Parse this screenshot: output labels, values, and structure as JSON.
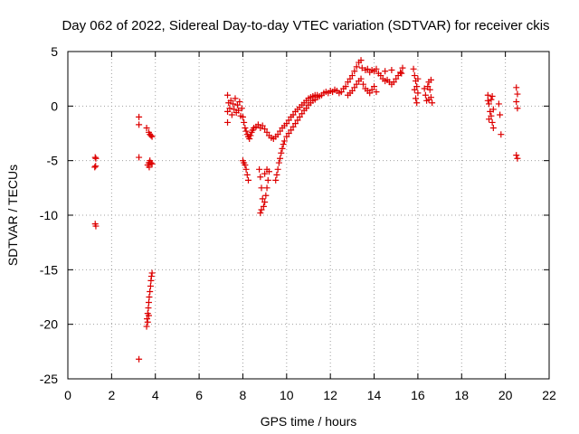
{
  "chart_data": {
    "type": "scatter",
    "title": "Day 062 of 2022, Sidereal Day-to-day VTEC variation (SDTVAR) for receiver ckis",
    "xlabel": "GPS time / hours",
    "ylabel": "SDTVAR / TECUs",
    "xlim": [
      0,
      22
    ],
    "ylim": [
      -25,
      5
    ],
    "xticks": [
      "0",
      "2",
      "4",
      "6",
      "8",
      "10",
      "12",
      "14",
      "16",
      "18",
      "20",
      "22"
    ],
    "yticks": [
      "5",
      "0",
      "-5",
      "-10",
      "-15",
      "-20",
      "-25"
    ],
    "grid": true,
    "marker": "+",
    "color": "#dd0000",
    "series": [
      {
        "name": "SDTVAR",
        "points": [
          [
            1.25,
            -4.7
          ],
          [
            1.28,
            -4.8
          ],
          [
            1.23,
            -5.6
          ],
          [
            1.27,
            -5.5
          ],
          [
            1.25,
            -10.8
          ],
          [
            1.28,
            -11.0
          ],
          [
            3.25,
            -1.0
          ],
          [
            3.25,
            -1.7
          ],
          [
            3.25,
            -4.7
          ],
          [
            3.25,
            -23.2
          ],
          [
            3.6,
            -2.0
          ],
          [
            3.7,
            -2.4
          ],
          [
            3.75,
            -2.6
          ],
          [
            3.8,
            -2.7
          ],
          [
            3.85,
            -2.8
          ],
          [
            3.65,
            -5.4
          ],
          [
            3.7,
            -5.2
          ],
          [
            3.75,
            -5.0
          ],
          [
            3.8,
            -5.2
          ],
          [
            3.85,
            -5.3
          ],
          [
            3.72,
            -5.6
          ],
          [
            3.6,
            -20.2
          ],
          [
            3.62,
            -19.5
          ],
          [
            3.65,
            -19.0
          ],
          [
            3.68,
            -18.5
          ],
          [
            3.7,
            -18.0
          ],
          [
            3.72,
            -17.5
          ],
          [
            3.75,
            -17.0
          ],
          [
            3.78,
            -16.5
          ],
          [
            3.8,
            -16.0
          ],
          [
            3.82,
            -15.6
          ],
          [
            3.85,
            -15.3
          ],
          [
            3.65,
            -19.8
          ],
          [
            3.7,
            -19.2
          ],
          [
            7.3,
            1.0
          ],
          [
            7.3,
            -0.5
          ],
          [
            7.3,
            -1.5
          ],
          [
            7.35,
            0.3
          ],
          [
            7.4,
            -0.2
          ],
          [
            7.45,
            0.5
          ],
          [
            7.5,
            -0.8
          ],
          [
            7.55,
            0.2
          ],
          [
            7.6,
            -0.3
          ],
          [
            7.65,
            0.7
          ],
          [
            7.7,
            -0.6
          ],
          [
            7.75,
            0.1
          ],
          [
            7.8,
            -0.4
          ],
          [
            7.85,
            0.4
          ],
          [
            7.9,
            -0.9
          ],
          [
            7.95,
            -0.2
          ],
          [
            8.0,
            -1.0
          ],
          [
            8.05,
            -1.5
          ],
          [
            8.1,
            -2.0
          ],
          [
            8.15,
            -2.3
          ],
          [
            8.2,
            -2.6
          ],
          [
            8.25,
            -2.8
          ],
          [
            8.3,
            -3.0
          ],
          [
            8.35,
            -2.7
          ],
          [
            8.4,
            -2.4
          ],
          [
            8.45,
            -2.2
          ],
          [
            8.5,
            -2.0
          ],
          [
            8.0,
            -5.0
          ],
          [
            8.05,
            -5.2
          ],
          [
            8.1,
            -5.4
          ],
          [
            8.15,
            -5.8
          ],
          [
            8.2,
            -6.3
          ],
          [
            8.25,
            -6.8
          ],
          [
            8.6,
            -1.9
          ],
          [
            8.7,
            -1.7
          ],
          [
            8.8,
            -2.0
          ],
          [
            8.9,
            -1.8
          ],
          [
            9.0,
            -2.1
          ],
          [
            9.1,
            -2.4
          ],
          [
            9.2,
            -2.7
          ],
          [
            9.3,
            -2.9
          ],
          [
            9.4,
            -3.0
          ],
          [
            9.5,
            -2.8
          ],
          [
            9.6,
            -2.6
          ],
          [
            9.7,
            -2.3
          ],
          [
            9.8,
            -2.0
          ],
          [
            9.9,
            -1.8
          ],
          [
            10.0,
            -1.6
          ],
          [
            10.1,
            -1.3
          ],
          [
            10.2,
            -1.0
          ],
          [
            10.3,
            -0.8
          ],
          [
            10.4,
            -0.5
          ],
          [
            10.5,
            -0.3
          ],
          [
            10.6,
            -0.1
          ],
          [
            10.7,
            0.1
          ],
          [
            10.8,
            0.3
          ],
          [
            10.9,
            0.5
          ],
          [
            11.0,
            0.7
          ],
          [
            11.1,
            0.8
          ],
          [
            11.2,
            0.9
          ],
          [
            11.3,
            1.0
          ],
          [
            11.4,
            1.0
          ],
          [
            8.75,
            -5.8
          ],
          [
            8.8,
            -6.5
          ],
          [
            8.85,
            -7.5
          ],
          [
            8.9,
            -8.5
          ],
          [
            8.95,
            -9.2
          ],
          [
            8.8,
            -9.8
          ],
          [
            8.85,
            -9.5
          ],
          [
            9.0,
            -8.8
          ],
          [
            9.05,
            -8.2
          ],
          [
            9.1,
            -7.5
          ],
          [
            9.15,
            -6.8
          ],
          [
            9.2,
            -6.0
          ],
          [
            9.0,
            -6.2
          ],
          [
            9.1,
            -5.8
          ],
          [
            9.5,
            -6.8
          ],
          [
            9.55,
            -6.3
          ],
          [
            9.6,
            -5.8
          ],
          [
            9.65,
            -5.2
          ],
          [
            9.7,
            -4.8
          ],
          [
            9.75,
            -4.3
          ],
          [
            9.8,
            -3.9
          ],
          [
            9.85,
            -3.5
          ],
          [
            9.9,
            -3.2
          ],
          [
            10.0,
            -2.8
          ],
          [
            10.1,
            -2.5
          ],
          [
            10.2,
            -2.2
          ],
          [
            10.3,
            -1.9
          ],
          [
            10.4,
            -1.6
          ],
          [
            10.5,
            -1.3
          ],
          [
            10.6,
            -1.0
          ],
          [
            10.7,
            -0.7
          ],
          [
            10.8,
            -0.4
          ],
          [
            10.9,
            -0.2
          ],
          [
            11.0,
            0.1
          ],
          [
            11.1,
            0.3
          ],
          [
            11.2,
            0.5
          ],
          [
            11.3,
            0.6
          ],
          [
            11.4,
            0.8
          ],
          [
            11.5,
            0.9
          ],
          [
            11.6,
            1.0
          ],
          [
            11.7,
            1.2
          ],
          [
            11.8,
            1.3
          ],
          [
            11.9,
            1.2
          ],
          [
            12.0,
            1.4
          ],
          [
            12.1,
            1.3
          ],
          [
            12.2,
            1.5
          ],
          [
            12.3,
            1.4
          ],
          [
            12.4,
            1.2
          ],
          [
            12.5,
            1.3
          ],
          [
            12.6,
            1.6
          ],
          [
            12.7,
            1.8
          ],
          [
            12.8,
            2.2
          ],
          [
            12.9,
            2.5
          ],
          [
            13.0,
            2.8
          ],
          [
            13.1,
            3.2
          ],
          [
            13.2,
            3.6
          ],
          [
            13.3,
            4.0
          ],
          [
            13.4,
            4.2
          ],
          [
            13.45,
            3.5
          ],
          [
            12.8,
            1.0
          ],
          [
            12.9,
            1.2
          ],
          [
            13.0,
            1.4
          ],
          [
            13.1,
            1.7
          ],
          [
            13.2,
            2.0
          ],
          [
            13.3,
            2.3
          ],
          [
            13.4,
            2.5
          ],
          [
            13.5,
            2.0
          ],
          [
            13.6,
            1.6
          ],
          [
            13.7,
            1.4
          ],
          [
            13.8,
            1.2
          ],
          [
            13.9,
            1.5
          ],
          [
            14.0,
            1.8
          ],
          [
            14.1,
            1.3
          ],
          [
            13.6,
            3.3
          ],
          [
            13.7,
            3.4
          ],
          [
            13.8,
            3.1
          ],
          [
            13.9,
            3.3
          ],
          [
            14.0,
            3.2
          ],
          [
            14.1,
            3.4
          ],
          [
            14.2,
            3.0
          ],
          [
            14.3,
            2.8
          ],
          [
            14.4,
            2.5
          ],
          [
            14.5,
            2.3
          ],
          [
            14.6,
            2.4
          ],
          [
            14.7,
            2.2
          ],
          [
            14.8,
            2.0
          ],
          [
            14.9,
            2.2
          ],
          [
            15.0,
            2.5
          ],
          [
            15.1,
            2.8
          ],
          [
            15.2,
            3.1
          ],
          [
            15.3,
            3.5
          ],
          [
            15.25,
            3.0
          ],
          [
            14.5,
            3.2
          ],
          [
            14.8,
            3.3
          ],
          [
            15.8,
            3.4
          ],
          [
            15.85,
            2.8
          ],
          [
            15.9,
            2.3
          ],
          [
            15.95,
            1.8
          ],
          [
            16.0,
            1.2
          ],
          [
            15.9,
            0.7
          ],
          [
            15.95,
            0.3
          ],
          [
            16.0,
            2.5
          ],
          [
            15.85,
            1.5
          ],
          [
            16.3,
            1.6
          ],
          [
            16.35,
            1.0
          ],
          [
            16.4,
            0.5
          ],
          [
            16.45,
            1.8
          ],
          [
            16.5,
            2.2
          ],
          [
            16.55,
            1.5
          ],
          [
            16.6,
            0.8
          ],
          [
            16.65,
            0.3
          ],
          [
            16.5,
            0.6
          ],
          [
            16.6,
            2.4
          ],
          [
            19.2,
            1.0
          ],
          [
            19.25,
            0.2
          ],
          [
            19.3,
            -0.5
          ],
          [
            19.35,
            -0.9
          ],
          [
            19.4,
            -1.5
          ],
          [
            19.45,
            -2.0
          ],
          [
            19.2,
            0.5
          ],
          [
            19.25,
            -1.2
          ],
          [
            19.35,
            0.6
          ],
          [
            19.4,
            0.9
          ],
          [
            19.45,
            -0.3
          ],
          [
            19.7,
            0.2
          ],
          [
            19.75,
            -0.8
          ],
          [
            19.8,
            -2.6
          ],
          [
            20.5,
            1.7
          ],
          [
            20.55,
            1.1
          ],
          [
            20.5,
            0.4
          ],
          [
            20.55,
            -0.2
          ],
          [
            20.5,
            -4.5
          ],
          [
            20.55,
            -4.8
          ]
        ]
      }
    ]
  }
}
